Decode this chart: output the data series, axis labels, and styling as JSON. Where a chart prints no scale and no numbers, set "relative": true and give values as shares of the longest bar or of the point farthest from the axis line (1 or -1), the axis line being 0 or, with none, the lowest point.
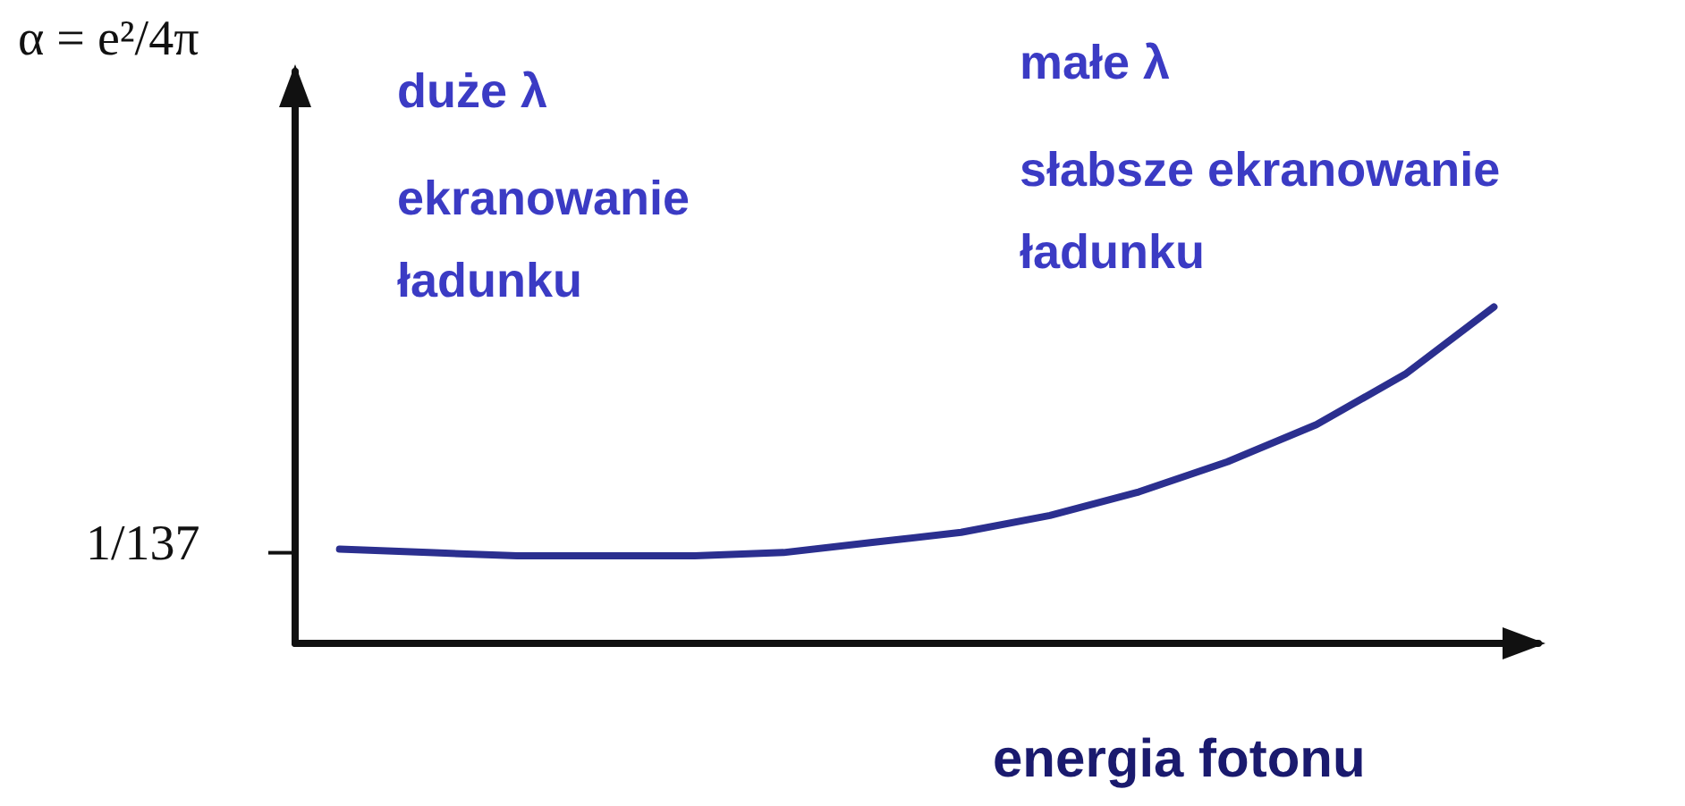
{
  "chart_data": {
    "type": "line",
    "relative": true,
    "xlabel": "energia fotonu",
    "categories": [
      null,
      null,
      null,
      null,
      null,
      null,
      null,
      null,
      null,
      null,
      null,
      null,
      null,
      null
    ],
    "values": [
      0.28,
      0.27,
      0.26,
      0.26,
      0.26,
      0.27,
      0.3,
      0.33,
      0.38,
      0.45,
      0.54,
      0.65,
      0.8,
      1
    ],
    "color": "#2b2f8f",
    "marker": "none",
    "line_style": "solid",
    "grid": false,
    "annotations": [
      "1/137",
      "duże λ",
      "ekranowanie\nładunku",
      "małe λ",
      "słabsze ekranowanie\nładunku",
      "α = e²/4π"
    ]
  }
}
